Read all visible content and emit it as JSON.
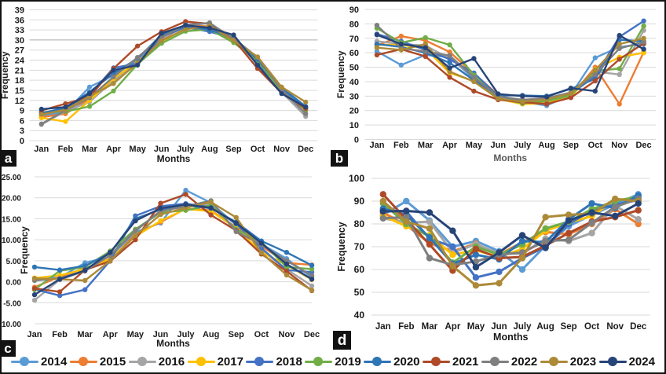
{
  "legend": {
    "years": [
      "2014",
      "2015",
      "2016",
      "2017",
      "2018",
      "2019",
      "2020",
      "2021",
      "2022",
      "2023",
      "2024"
    ],
    "colors": [
      "#5B9BD5",
      "#ED7D31",
      "#A5A5A5",
      "#FFC000",
      "#4472C4",
      "#70AD47",
      "#2E75B6",
      "#AE4A28",
      "#7F7F7F",
      "#AC8A38",
      "#264478"
    ]
  },
  "chart_data": [
    {
      "type": "line",
      "panel_label": "a",
      "xlabel": "Months",
      "ylabel": "Frequency",
      "x": [
        "Jan",
        "Feb",
        "Mar",
        "Apr",
        "May",
        "Jun",
        "July",
        "Aug",
        "Sep",
        "Oct",
        "Nov",
        "Dec"
      ],
      "ylim": [
        0,
        39
      ],
      "ytick_step": 3,
      "ytick_decimals": 0,
      "grid": true,
      "legend_position": "none",
      "series": [
        {
          "name": "2014",
          "color": "#5B9BD5",
          "values": [
            7.5,
            8.5,
            16.0,
            19.5,
            24.0,
            30.5,
            34.0,
            33.5,
            30.0,
            24.0,
            15.5,
            9.5
          ]
        },
        {
          "name": "2015",
          "color": "#ED7D31",
          "values": [
            7.0,
            8.0,
            12.5,
            17.2,
            23.5,
            30.0,
            34.5,
            34.0,
            29.5,
            23.5,
            15.0,
            9.0
          ]
        },
        {
          "name": "2016",
          "color": "#A5A5A5",
          "values": [
            4.8,
            8.8,
            11.5,
            18.0,
            23.0,
            30.5,
            34.0,
            35.2,
            30.0,
            23.0,
            14.5,
            7.2
          ]
        },
        {
          "name": "2017",
          "color": "#FFC000",
          "values": [
            6.8,
            5.7,
            12.0,
            18.5,
            23.5,
            29.5,
            33.5,
            33.8,
            29.5,
            24.5,
            15.0,
            9.5
          ]
        },
        {
          "name": "2018",
          "color": "#4472C4",
          "values": [
            8.0,
            9.5,
            13.5,
            21.7,
            23.0,
            31.0,
            33.8,
            32.5,
            30.5,
            23.0,
            15.5,
            9.8
          ]
        },
        {
          "name": "2019",
          "color": "#70AD47",
          "values": [
            8.5,
            8.7,
            10.2,
            14.8,
            22.8,
            29.0,
            32.6,
            33.2,
            29.2,
            23.8,
            14.8,
            9.2
          ]
        },
        {
          "name": "2020",
          "color": "#2E75B6",
          "values": [
            8.2,
            9.8,
            14.5,
            20.0,
            24.5,
            31.5,
            34.2,
            33.0,
            30.8,
            24.2,
            15.8,
            10.2
          ]
        },
        {
          "name": "2021",
          "color": "#AE4A28",
          "values": [
            9.0,
            11.0,
            13.0,
            21.5,
            28.2,
            32.5,
            35.5,
            34.8,
            30.2,
            21.5,
            14.2,
            9.6
          ]
        },
        {
          "name": "2022",
          "color": "#7F7F7F",
          "values": [
            5.0,
            9.0,
            12.8,
            19.0,
            24.8,
            30.8,
            34.6,
            35.0,
            30.5,
            24.8,
            15.2,
            8.0
          ]
        },
        {
          "name": "2023",
          "color": "#AC8A38",
          "values": [
            7.8,
            9.2,
            13.2,
            17.0,
            23.2,
            29.8,
            33.2,
            34.2,
            29.8,
            25.0,
            16.0,
            11.5
          ]
        },
        {
          "name": "2024",
          "color": "#264478",
          "values": [
            9.4,
            10.0,
            14.0,
            21.0,
            22.5,
            32.0,
            34.4,
            33.6,
            31.5,
            22.5,
            14.0,
            10.0
          ]
        }
      ]
    },
    {
      "type": "line",
      "panel_label": "b",
      "xlabel": "Months",
      "ylabel": "Frequency",
      "x": [
        "Jan",
        "Feb",
        "Mar",
        "Apr",
        "May",
        "Jun",
        "July",
        "Aug",
        "Sep",
        "Oct",
        "Nov",
        "Dec"
      ],
      "ylim": [
        0,
        90
      ],
      "ytick_step": 10,
      "ytick_decimals": 0,
      "grid": true,
      "legend_position": "none",
      "series": [
        {
          "name": "2014",
          "color": "#5B9BD5",
          "values": [
            61.0,
            51.5,
            58.5,
            57.0,
            42.0,
            29.0,
            26.0,
            23.5,
            31.0,
            56.5,
            64.0,
            66.0
          ]
        },
        {
          "name": "2015",
          "color": "#ED7D31",
          "values": [
            65.0,
            71.5,
            68.5,
            60.5,
            45.5,
            31.0,
            25.5,
            26.0,
            30.0,
            50.0,
            24.5,
            60.5
          ]
        },
        {
          "name": "2016",
          "color": "#A5A5A5",
          "values": [
            68.0,
            66.0,
            65.0,
            56.0,
            44.0,
            29.5,
            26.5,
            27.0,
            32.0,
            47.0,
            45.0,
            75.5
          ]
        },
        {
          "name": "2017",
          "color": "#FFC000",
          "values": [
            65.5,
            65.5,
            63.0,
            46.0,
            40.5,
            28.0,
            24.5,
            25.0,
            29.5,
            48.5,
            57.0,
            60.0
          ]
        },
        {
          "name": "2018",
          "color": "#4472C4",
          "values": [
            73.0,
            68.0,
            62.0,
            55.5,
            46.0,
            30.0,
            27.0,
            28.0,
            31.5,
            44.0,
            71.0,
            82.0
          ]
        },
        {
          "name": "2019",
          "color": "#70AD47",
          "values": [
            77.0,
            67.0,
            70.5,
            65.5,
            44.5,
            28.5,
            25.0,
            26.5,
            30.5,
            47.5,
            49.0,
            78.5
          ]
        },
        {
          "name": "2020",
          "color": "#2E75B6",
          "values": [
            66.0,
            64.0,
            60.0,
            53.0,
            41.0,
            30.5,
            30.5,
            30.0,
            35.0,
            42.0,
            69.0,
            68.0
          ]
        },
        {
          "name": "2021",
          "color": "#AE4A28",
          "values": [
            58.5,
            62.5,
            57.5,
            43.0,
            33.5,
            27.5,
            25.8,
            24.5,
            29.0,
            40.5,
            55.5,
            66.5
          ]
        },
        {
          "name": "2022",
          "color": "#7F7F7F",
          "values": [
            79.0,
            63.0,
            61.0,
            58.0,
            43.0,
            29.8,
            27.5,
            28.5,
            32.5,
            45.0,
            63.0,
            67.5
          ]
        },
        {
          "name": "2023",
          "color": "#AC8A38",
          "values": [
            63.5,
            62.0,
            66.0,
            47.0,
            40.0,
            28.2,
            26.2,
            27.8,
            31.8,
            48.0,
            66.0,
            70.0
          ]
        },
        {
          "name": "2024",
          "color": "#264478",
          "values": [
            72.5,
            66.0,
            63.5,
            49.5,
            56.0,
            31.5,
            30.0,
            29.5,
            35.5,
            33.5,
            72.0,
            62.5
          ]
        }
      ]
    },
    {
      "type": "line",
      "panel_label": "c",
      "xlabel": "Months",
      "ylabel": "Frequency",
      "x": [
        "Jan",
        "Feb",
        "Mar",
        "Apr",
        "May",
        "Jun",
        "July",
        "Aug",
        "Sep",
        "Oct",
        "Nov",
        "Dec"
      ],
      "ylim": [
        -10,
        25
      ],
      "ytick_step": 5,
      "ytick_decimals": 2,
      "grid": true,
      "legend_position": "none",
      "series": [
        {
          "name": "2014",
          "color": "#5B9BD5",
          "values": [
            0.6,
            1.0,
            4.5,
            6.0,
            11.8,
            14.0,
            21.8,
            18.8,
            13.5,
            9.0,
            5.5,
            1.0
          ]
        },
        {
          "name": "2015",
          "color": "#ED7D31",
          "values": [
            -1.3,
            1.2,
            3.2,
            5.2,
            11.3,
            14.2,
            17.4,
            17.0,
            13.0,
            8.5,
            4.5,
            4.0
          ]
        },
        {
          "name": "2016",
          "color": "#A5A5A5",
          "values": [
            -4.4,
            0.5,
            2.5,
            6.5,
            12.0,
            17.0,
            17.8,
            18.5,
            11.9,
            7.5,
            3.0,
            -1.0
          ]
        },
        {
          "name": "2017",
          "color": "#FFC000",
          "values": [
            0.9,
            1.5,
            3.0,
            5.5,
            10.8,
            14.5,
            17.3,
            16.8,
            12.8,
            7.0,
            4.0,
            0.5
          ]
        },
        {
          "name": "2018",
          "color": "#4472C4",
          "values": [
            -1.8,
            -3.3,
            -1.9,
            5.0,
            15.7,
            18.0,
            18.6,
            17.8,
            13.8,
            8.0,
            2.8,
            2.3
          ]
        },
        {
          "name": "2019",
          "color": "#70AD47",
          "values": [
            -1.9,
            2.6,
            3.5,
            7.3,
            12.5,
            16.5,
            17.0,
            18.2,
            12.5,
            9.5,
            3.5,
            3.0
          ]
        },
        {
          "name": "2020",
          "color": "#2E75B6",
          "values": [
            3.5,
            2.8,
            3.8,
            6.8,
            15.0,
            17.2,
            18.2,
            17.5,
            14.2,
            9.7,
            7.0,
            3.9
          ]
        },
        {
          "name": "2021",
          "color": "#AE4A28",
          "values": [
            -1.6,
            -2.4,
            2.8,
            4.9,
            10.0,
            18.7,
            20.8,
            15.9,
            12.2,
            6.6,
            2.5,
            -2.1
          ]
        },
        {
          "name": "2022",
          "color": "#7F7F7F",
          "values": [
            0.3,
            0.8,
            2.6,
            6.2,
            12.2,
            16.8,
            18.0,
            19.3,
            12.0,
            8.8,
            5.0,
            1.5
          ]
        },
        {
          "name": "2023",
          "color": "#AC8A38",
          "values": [
            0.8,
            0.6,
            0.3,
            5.0,
            11.0,
            16.0,
            17.6,
            19.0,
            15.3,
            6.9,
            1.6,
            -2.0
          ]
        },
        {
          "name": "2024",
          "color": "#264478",
          "values": [
            -3.1,
            0.6,
            2.7,
            7.0,
            14.5,
            17.5,
            18.4,
            17.6,
            14.0,
            9.2,
            4.2,
            0.6
          ]
        }
      ]
    },
    {
      "type": "line",
      "panel_label": "d",
      "xlabel": "Months",
      "ylabel": "Frequency",
      "x": [
        "Jan",
        "Feb",
        "Mar",
        "Apr",
        "May",
        "Jun",
        "July",
        "Aug",
        "Sep",
        "Oct",
        "Nov",
        "Dec"
      ],
      "ylim": [
        40,
        100
      ],
      "ytick_step": 10,
      "ytick_decimals": 0,
      "grid": true,
      "legend_position": "none",
      "series": [
        {
          "name": "2014",
          "color": "#5B9BD5",
          "values": [
            84.0,
            90.0,
            81.5,
            70.0,
            72.5,
            68.0,
            60.0,
            70.5,
            79.0,
            84.0,
            88.5,
            93.0
          ]
        },
        {
          "name": "2015",
          "color": "#ED7D31",
          "values": [
            85.0,
            79.5,
            71.5,
            68.0,
            71.3,
            66.5,
            72.0,
            76.5,
            75.5,
            80.0,
            86.5,
            80.0
          ]
        },
        {
          "name": "2016",
          "color": "#A5A5A5",
          "values": [
            82.5,
            80.5,
            81.0,
            67.5,
            71.0,
            67.0,
            67.0,
            73.5,
            72.5,
            76.0,
            88.0,
            82.0
          ]
        },
        {
          "name": "2017",
          "color": "#FFC000",
          "values": [
            83.5,
            79.0,
            75.0,
            66.5,
            68.5,
            65.5,
            69.0,
            77.0,
            80.5,
            83.5,
            90.5,
            91.5
          ]
        },
        {
          "name": "2018",
          "color": "#4472C4",
          "values": [
            86.0,
            85.5,
            73.5,
            70.0,
            56.5,
            59.0,
            65.0,
            70.0,
            80.0,
            86.0,
            88.5,
            90.5
          ]
        },
        {
          "name": "2019",
          "color": "#70AD47",
          "values": [
            89.0,
            80.0,
            74.5,
            63.0,
            70.0,
            66.5,
            71.0,
            78.0,
            81.0,
            86.5,
            90.0,
            92.0
          ]
        },
        {
          "name": "2020",
          "color": "#2E75B6",
          "values": [
            86.7,
            84.0,
            74.0,
            62.5,
            66.5,
            64.5,
            72.5,
            72.0,
            82.0,
            89.0,
            87.0,
            92.5
          ]
        },
        {
          "name": "2021",
          "color": "#AE4A28",
          "values": [
            93.0,
            82.0,
            71.0,
            59.5,
            69.0,
            65.0,
            65.5,
            70.5,
            76.0,
            81.0,
            83.0,
            86.0
          ]
        },
        {
          "name": "2022",
          "color": "#7F7F7F",
          "values": [
            82.5,
            83.0,
            65.0,
            62.0,
            63.5,
            66.5,
            67.5,
            72.5,
            73.0,
            80.5,
            87.5,
            91.0
          ]
        },
        {
          "name": "2023",
          "color": "#AC8A38",
          "values": [
            90.0,
            81.0,
            78.0,
            61.5,
            53.0,
            54.0,
            65.0,
            83.0,
            84.0,
            84.5,
            91.0,
            90.0
          ]
        },
        {
          "name": "2024",
          "color": "#264478",
          "values": [
            85.5,
            85.7,
            85.0,
            77.0,
            61.0,
            67.5,
            75.0,
            69.5,
            81.5,
            85.0,
            83.5,
            89.0
          ]
        }
      ]
    }
  ]
}
